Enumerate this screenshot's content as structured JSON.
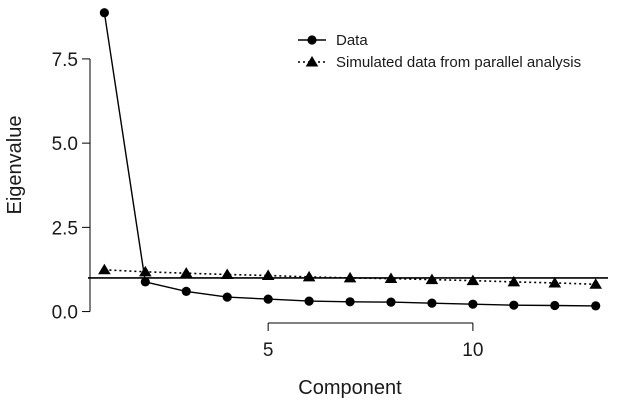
{
  "chart_data": {
    "type": "line",
    "title": "",
    "xlabel": "Component",
    "ylabel": "Eigenvalue",
    "xlim": [
      0.6,
      13.3
    ],
    "ylim": [
      -0.25,
      9.1
    ],
    "x_ticks": [
      5,
      10
    ],
    "x_tick_labels": [
      "5",
      "10"
    ],
    "y_ticks": [
      0,
      2.5,
      5,
      7.5
    ],
    "y_tick_labels": [
      "0.0",
      "2.5",
      "5.0",
      "7.5"
    ],
    "reference_line": {
      "y": 1.0
    },
    "legend_position": "top-right",
    "grid": false,
    "x": [
      1,
      2,
      3,
      4,
      5,
      6,
      7,
      8,
      9,
      10,
      11,
      12,
      13
    ],
    "series": [
      {
        "name": "Data",
        "marker": "circle",
        "line_style": "solid",
        "color": "#000000",
        "values": [
          8.87,
          0.88,
          0.6,
          0.43,
          0.37,
          0.31,
          0.29,
          0.28,
          0.25,
          0.22,
          0.19,
          0.18,
          0.17
        ]
      },
      {
        "name": "Simulated data from parallel analysis",
        "marker": "triangle",
        "line_style": "dotted",
        "color": "#000000",
        "values": [
          1.24,
          1.18,
          1.14,
          1.1,
          1.07,
          1.03,
          1.0,
          0.98,
          0.95,
          0.92,
          0.88,
          0.85,
          0.81
        ]
      }
    ]
  }
}
